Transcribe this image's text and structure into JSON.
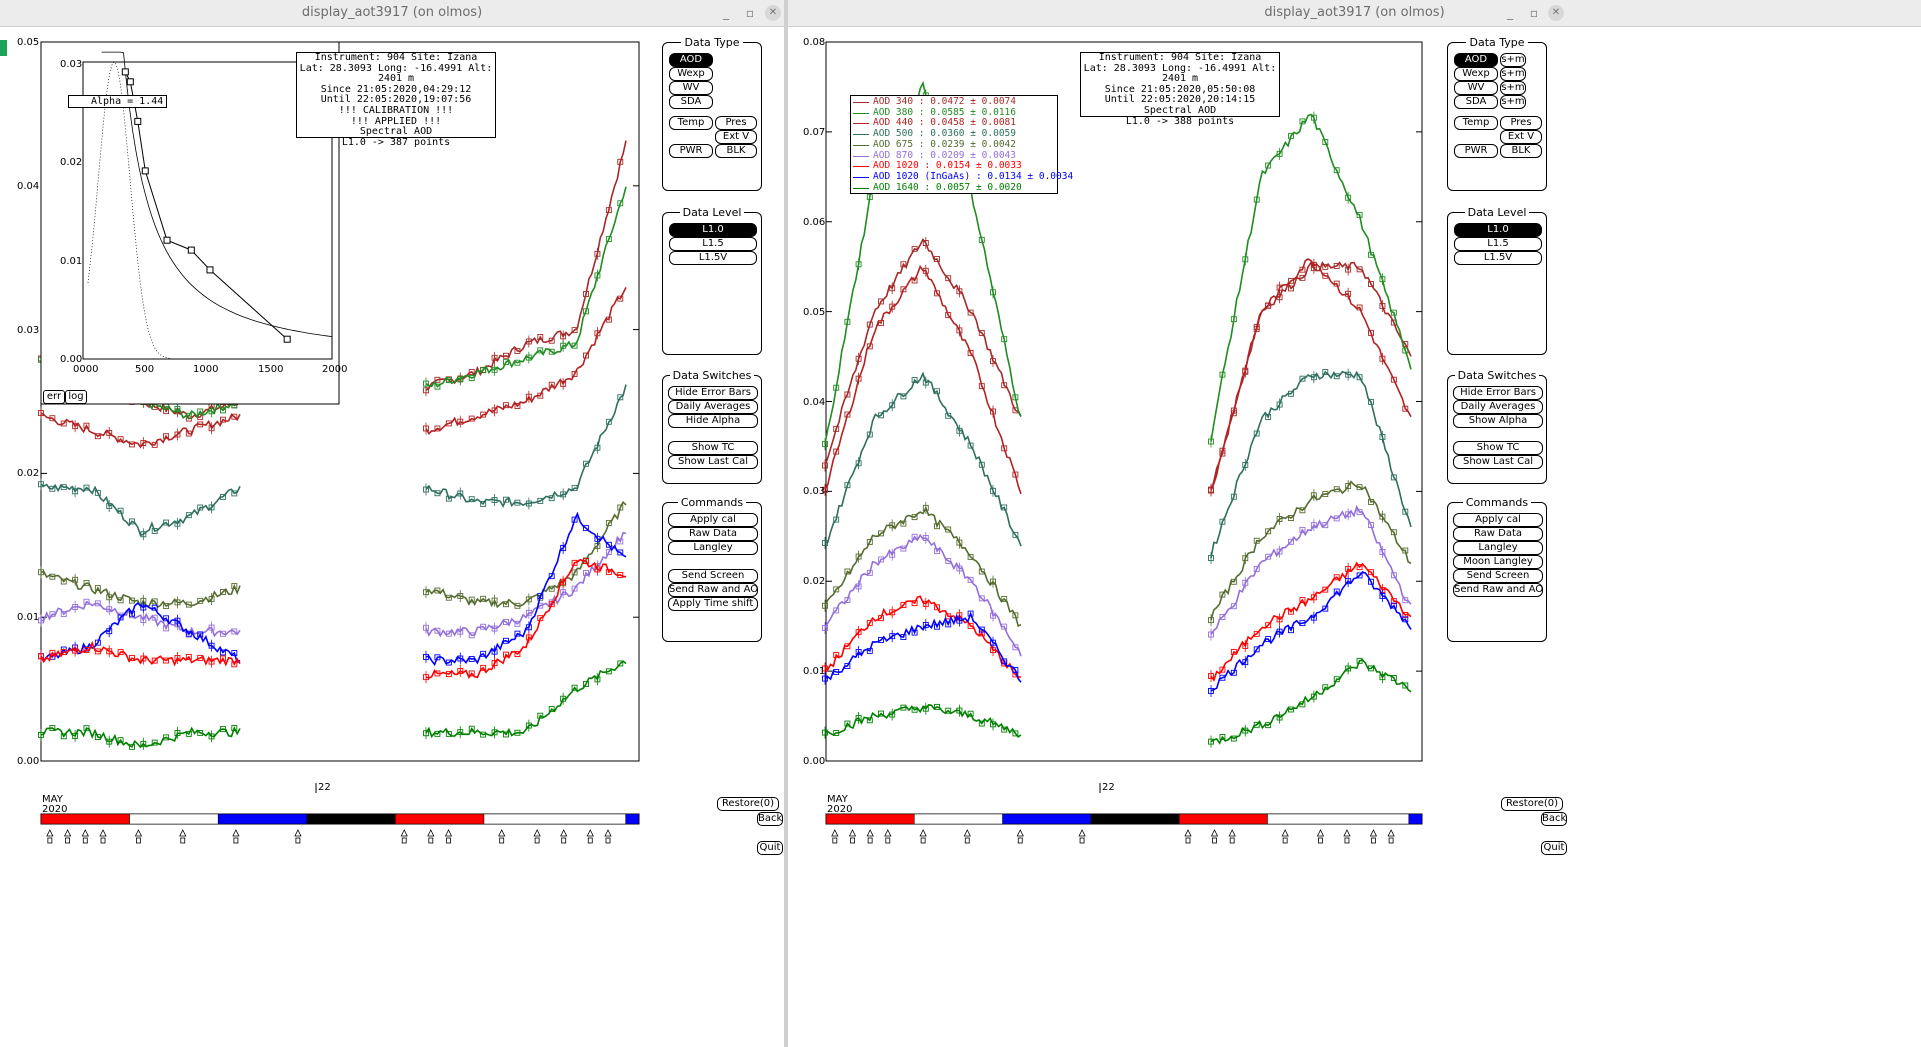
{
  "windows": [
    {
      "title": "display_aot3917 (on olmos)",
      "info_lines": [
        "Instrument: 904 Site: Izana",
        "Lat: 28.3093 Long: -16.4991 Alt: 2401 m",
        "Since 21:05:2020,04:29:12",
        "Until 22:05:2020,19:07:56",
        "!!! CALIBRATION !!!",
        "!!!  APPLIED  !!!",
        "Spectral AOD",
        "L1.0 -> 387 points"
      ],
      "y_ticks": [
        "0.05",
        "0.04",
        "0.03",
        "0.02",
        "0.01",
        "0.00"
      ],
      "inset": {
        "y_ticks": [
          "0.03",
          "0.02",
          "0.01",
          "0.00"
        ],
        "x_ticks": [
          "0000",
          "500",
          "1000",
          "1500",
          "2000"
        ],
        "alpha_label": "Alpha = 1.44",
        "err_label": "err",
        "log_label": "log"
      },
      "date_marker": "22",
      "month_label": "MAY",
      "year_label": "2020",
      "data_type": {
        "title": "Data Type",
        "buttons": [
          "AOD",
          "Wexp",
          "WV",
          "SDA",
          "Temp",
          "Pres",
          "Ext V",
          "PWR",
          "BLK"
        ]
      },
      "data_level": {
        "title": "Data Level",
        "buttons": [
          "L1.0",
          "L1.5",
          "L1.5V"
        ]
      },
      "data_switches": {
        "title": "Data Switches",
        "buttons": [
          "Hide Error Bars",
          "Daily Averages",
          "Hide Alpha",
          "Show TC",
          "Show Last Cal"
        ]
      },
      "commands": {
        "title": "Commands",
        "buttons": [
          "Apply cal",
          "Raw Data",
          "Langley",
          "Send Screen",
          "Send Raw and AOD",
          "Apply Time shift"
        ]
      },
      "restore_label": "Restore(0)",
      "back_label": "Back",
      "quit_label": "Quit"
    },
    {
      "title": "display_aot3917 (on olmos)",
      "info_lines": [
        "Instrument: 904 Site: Izana",
        "Lat: 28.3093 Long: -16.4991 Alt: 2401 m",
        "Since 21:05:2020,05:50:08",
        "Until 22:05:2020,20:14:15",
        "Spectral AOD",
        "L1.0 -> 388 points"
      ],
      "y_ticks": [
        "0.08",
        "0.07",
        "0.06",
        "0.05",
        "0.04",
        "0.03",
        "0.02",
        "0.01",
        "0.00"
      ],
      "legend": [
        {
          "text": "AOD 340   : 0.0472 ± 0.0074",
          "color": "#a52a2a"
        },
        {
          "text": "AOD 380   : 0.0585 ± 0.0116",
          "color": "#228b22"
        },
        {
          "text": "AOD 440   : 0.0458 ± 0.0081",
          "color": "#b22222"
        },
        {
          "text": "AOD 500   : 0.0360 ± 0.0059",
          "color": "#2f6f5f"
        },
        {
          "text": "AOD 675   : 0.0239 ± 0.0042",
          "color": "#556b2f"
        },
        {
          "text": "AOD 870   : 0.0209 ± 0.0043",
          "color": "#9370db"
        },
        {
          "text": "AOD 1020  : 0.0154 ± 0.0033",
          "color": "#ff0000"
        },
        {
          "text": "AOD 1020 (InGaAs)  : 0.0134 ± 0.0034",
          "color": "#0000ff"
        },
        {
          "text": "AOD 1640  : 0.0057 ± 0.0020",
          "color": "#008000"
        }
      ],
      "date_marker": "22",
      "month_label": "MAY",
      "year_label": "2020",
      "data_type": {
        "title": "Data Type",
        "buttons": [
          "AOD",
          "Wexp",
          "WV",
          "SDA",
          "Temp",
          "Pres",
          "Ext V",
          "PWR",
          "BLK"
        ],
        "sm_label": "s+m"
      },
      "data_level": {
        "title": "Data Level",
        "buttons": [
          "L1.0",
          "L1.5",
          "L1.5V"
        ]
      },
      "data_switches": {
        "title": "Data Switches",
        "buttons": [
          "Hide Error Bars",
          "Daily Averages",
          "Show Alpha",
          "Show TC",
          "Show Last Cal"
        ]
      },
      "commands": {
        "title": "Commands",
        "buttons": [
          "Apply cal",
          "Raw Data",
          "Langley",
          "Moon Langley",
          "Send Screen",
          "Send Raw and AOD"
        ]
      },
      "restore_label": "Restore(0)",
      "back_label": "Back",
      "quit_label": "Quit"
    }
  ],
  "series_colors": {
    "aod340": "#a52a2a",
    "aod380": "#228b22",
    "aod440": "#b22222",
    "aod500": "#2f6f5f",
    "aod675": "#556b2f",
    "aod870": "#9370db",
    "aod1020": "#ff0000",
    "aod1020ingaas": "#0000ff",
    "aod1640": "#008000"
  },
  "chart_data": [
    {
      "type": "scatter",
      "title": "Spectral AOD",
      "ylim": [
        0,
        0.05
      ],
      "segments": [
        {
          "name": "AOD 340",
          "day1": [
            0.028,
            0.026,
            0.025,
            0.024,
            0.025
          ],
          "day2": [
            0.026,
            0.027,
            0.029,
            0.03,
            0.043
          ]
        },
        {
          "name": "AOD 380",
          "day1": [
            0.028,
            0.026,
            0.025,
            0.024,
            0.025
          ],
          "day2": [
            0.026,
            0.027,
            0.028,
            0.029,
            0.04
          ]
        },
        {
          "name": "AOD 440",
          "day1": [
            0.024,
            0.023,
            0.022,
            0.023,
            0.024
          ],
          "day2": [
            0.023,
            0.024,
            0.025,
            0.027,
            0.033
          ]
        },
        {
          "name": "AOD 500",
          "day1": [
            0.019,
            0.019,
            0.016,
            0.017,
            0.019
          ],
          "day2": [
            0.019,
            0.018,
            0.018,
            0.019,
            0.026
          ]
        },
        {
          "name": "AOD 675",
          "day1": [
            0.013,
            0.012,
            0.011,
            0.011,
            0.012
          ],
          "day2": [
            0.012,
            0.011,
            0.011,
            0.013,
            0.018
          ]
        },
        {
          "name": "AOD 870",
          "day1": [
            0.01,
            0.011,
            0.01,
            0.009,
            0.009
          ],
          "day2": [
            0.009,
            0.009,
            0.01,
            0.012,
            0.016
          ]
        },
        {
          "name": "AOD 1020 (InGaAs)",
          "day1": [
            0.007,
            0.008,
            0.011,
            0.009,
            0.007
          ],
          "day2": [
            0.007,
            0.007,
            0.009,
            0.017,
            0.014
          ]
        },
        {
          "name": "AOD 1020",
          "day1": [
            0.007,
            0.008,
            0.007,
            0.007,
            0.007
          ],
          "day2": [
            0.006,
            0.006,
            0.008,
            0.014,
            0.013
          ]
        },
        {
          "name": "AOD 1640",
          "day1": [
            0.002,
            0.002,
            0.001,
            0.002,
            0.002
          ],
          "day2": [
            0.002,
            0.002,
            0.002,
            0.005,
            0.007
          ]
        }
      ],
      "inset": {
        "type": "line",
        "xlim": [
          0,
          2000
        ],
        "ylim": [
          0,
          0.03
        ],
        "x": [
          340,
          380,
          440,
          500,
          675,
          870,
          1020,
          1640
        ],
        "y": [
          0.029,
          0.028,
          0.024,
          0.019,
          0.012,
          0.011,
          0.009,
          0.002
        ]
      }
    },
    {
      "type": "scatter",
      "title": "Spectral AOD",
      "ylim": [
        0,
        0.08
      ],
      "segments": [
        {
          "name": "AOD 340",
          "day1": [
            0.033,
            0.05,
            0.058,
            0.05,
            0.038
          ],
          "day2": [
            0.03,
            0.05,
            0.055,
            0.055,
            0.045
          ]
        },
        {
          "name": "AOD 380",
          "day1": [
            0.035,
            0.065,
            0.075,
            0.063,
            0.038
          ],
          "day2": [
            0.036,
            0.065,
            0.072,
            0.06,
            0.044
          ]
        },
        {
          "name": "AOD 440",
          "day1": [
            0.03,
            0.048,
            0.055,
            0.045,
            0.03
          ],
          "day2": [
            0.03,
            0.05,
            0.056,
            0.05,
            0.038
          ]
        },
        {
          "name": "AOD 500",
          "day1": [
            0.024,
            0.038,
            0.043,
            0.035,
            0.024
          ],
          "day2": [
            0.023,
            0.038,
            0.043,
            0.043,
            0.026
          ]
        },
        {
          "name": "AOD 675",
          "day1": [
            0.017,
            0.025,
            0.028,
            0.023,
            0.015
          ],
          "day2": [
            0.016,
            0.025,
            0.029,
            0.031,
            0.022
          ]
        },
        {
          "name": "AOD 870",
          "day1": [
            0.015,
            0.022,
            0.025,
            0.02,
            0.012
          ],
          "day2": [
            0.014,
            0.022,
            0.026,
            0.028,
            0.017
          ]
        },
        {
          "name": "AOD 1020",
          "day1": [
            0.01,
            0.016,
            0.018,
            0.015,
            0.009
          ],
          "day2": [
            0.009,
            0.015,
            0.018,
            0.022,
            0.016
          ]
        },
        {
          "name": "AOD 1020 (InGaAs)",
          "day1": [
            0.009,
            0.013,
            0.015,
            0.016,
            0.009
          ],
          "day2": [
            0.008,
            0.013,
            0.016,
            0.021,
            0.015
          ]
        },
        {
          "name": "AOD 1640",
          "day1": [
            0.003,
            0.005,
            0.006,
            0.005,
            0.003
          ],
          "day2": [
            0.002,
            0.004,
            0.007,
            0.011,
            0.008
          ]
        }
      ]
    }
  ]
}
